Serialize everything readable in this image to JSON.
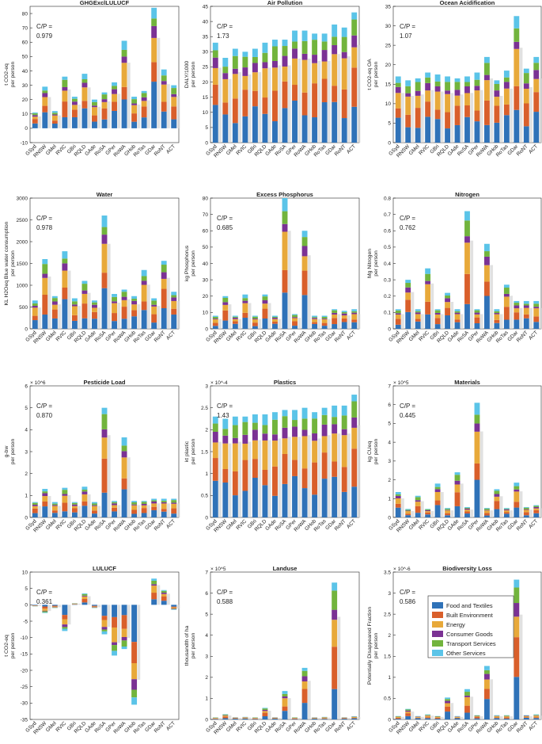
{
  "regions": [
    "GSyd",
    "RNSW",
    "GMel",
    "RVIC",
    "GBri",
    "RQLD",
    "GAde",
    "RoSA",
    "GPer",
    "RoWA",
    "GHob",
    "RoTas",
    "GDar",
    "RoNT",
    "ACT"
  ],
  "legend": {
    "entries": [
      {
        "name": "Food and Textiles",
        "color": "#2f72b8"
      },
      {
        "name": "Built Environment",
        "color": "#d95f2b"
      },
      {
        "name": "Energy",
        "color": "#e8a93a"
      },
      {
        "name": "Consumer Goods",
        "color": "#7b3294"
      },
      {
        "name": "Transport Services",
        "color": "#72b43d"
      },
      {
        "name": "Other Services",
        "color": "#5bc4e8"
      }
    ]
  },
  "chart_data": [
    {
      "type": "bar",
      "stacked": true,
      "title": "GHGExclLULUCF",
      "ylabel": "t CO2-eq\nper person",
      "ylim": [
        -10,
        85
      ],
      "yticks": [
        -10,
        0,
        10,
        20,
        30,
        40,
        50,
        60,
        70,
        80
      ],
      "exponent": "",
      "cp_label": "C/P =",
      "cp_value": "0.979",
      "cp_pos": "left",
      "legend": false,
      "totals": [
        11,
        29,
        12,
        36,
        22,
        38,
        20,
        25,
        32,
        61,
        22,
        26,
        84,
        41,
        30
      ]
    },
    {
      "type": "bar",
      "stacked": true,
      "title": "Air Pollution",
      "ylabel": "DALY/1000\nper person",
      "ylim": [
        0,
        45
      ],
      "yticks": [
        0,
        5,
        10,
        15,
        20,
        25,
        30,
        35,
        40,
        45
      ],
      "exponent": "",
      "cp_label": "C/P =",
      "cp_value": "1.73",
      "cp_pos": "left",
      "legend": false,
      "totals": [
        33,
        28,
        31,
        30,
        31,
        33,
        34,
        34,
        37,
        37,
        36,
        36,
        39,
        38,
        43
      ]
    },
    {
      "type": "bar",
      "stacked": true,
      "title": "Ocean Acidification",
      "ylabel": "t CO2-eq OA\nper person",
      "ylim": [
        0,
        35
      ],
      "yticks": [
        0,
        5,
        10,
        15,
        20,
        25,
        30,
        35
      ],
      "exponent": "",
      "cp_label": "C/P =",
      "cp_value": "1.07",
      "cp_pos": "left",
      "legend": false,
      "totals": [
        17,
        16,
        16.5,
        18,
        17.5,
        17,
        16.5,
        17,
        18,
        22,
        16,
        18.5,
        32.5,
        19,
        22
      ]
    },
    {
      "type": "bar",
      "stacked": true,
      "title": "Water",
      "ylabel": "KL H2Oeq Blue water consumption\nper person",
      "ylim": [
        0,
        3000
      ],
      "yticks": [
        0,
        500,
        1000,
        1500,
        2000,
        2500,
        3000
      ],
      "exponent": "",
      "cp_label": "C/P =",
      "cp_value": "0.978",
      "cp_pos": "left",
      "legend": false,
      "totals": [
        650,
        1600,
        750,
        1780,
        700,
        1100,
        650,
        2600,
        800,
        900,
        750,
        1350,
        700,
        1560,
        850
      ]
    },
    {
      "type": "bar",
      "stacked": true,
      "title": "Excess Phosphorus",
      "ylabel": "kg Phosphorus\nper person",
      "ylim": [
        0,
        80
      ],
      "yticks": [
        0,
        10,
        20,
        30,
        40,
        50,
        60,
        70,
        80
      ],
      "exponent": "",
      "cp_label": "C/P =",
      "cp_value": "0.685",
      "cp_pos": "left",
      "legend": false,
      "totals": [
        8,
        20,
        8,
        21,
        8,
        21,
        8,
        80,
        9,
        60,
        8,
        8,
        12,
        11,
        12
      ]
    },
    {
      "type": "bar",
      "stacked": true,
      "title": "Nitrogen",
      "ylabel": "Mg Nitrogen\nper person",
      "ylim": [
        0,
        0.8
      ],
      "yticks": [
        0,
        0.1,
        0.2,
        0.3,
        0.4,
        0.5,
        0.6,
        0.7,
        0.8
      ],
      "exponent": "",
      "cp_label": "C/P =",
      "cp_value": "0.762",
      "cp_pos": "left",
      "legend": false,
      "totals": [
        0.12,
        0.3,
        0.12,
        0.37,
        0.12,
        0.22,
        0.12,
        0.72,
        0.12,
        0.52,
        0.12,
        0.27,
        0.17,
        0.17,
        0.17
      ]
    },
    {
      "type": "bar",
      "stacked": true,
      "title": "Pesticide Load",
      "ylabel": "g-bw\nper person",
      "ylim": [
        0,
        6
      ],
      "yticks": [
        0,
        1,
        2,
        3,
        4,
        5,
        6
      ],
      "exponent": "× 10^6",
      "cp_label": "C/P =",
      "cp_value": "0.870",
      "cp_pos": "left",
      "legend": false,
      "totals": [
        0.7,
        1.3,
        0.7,
        1.35,
        0.7,
        1.4,
        0.7,
        5.0,
        0.75,
        3.65,
        0.75,
        0.75,
        0.85,
        0.85,
        0.85
      ]
    },
    {
      "type": "bar",
      "stacked": true,
      "title": "Plastics",
      "ylabel": "kt plastic\nper person",
      "ylim": [
        0,
        3
      ],
      "yticks": [
        0,
        0.5,
        1,
        1.5,
        2,
        2.5,
        3
      ],
      "exponent": "× 10^-4",
      "cp_label": "C/P =",
      "cp_value": "1.43",
      "cp_pos": "left",
      "legend": false,
      "totals": [
        2.3,
        2.25,
        2.3,
        2.3,
        2.35,
        2.35,
        2.4,
        2.45,
        2.45,
        2.5,
        2.4,
        2.5,
        2.55,
        2.55,
        2.8
      ]
    },
    {
      "type": "bar",
      "stacked": true,
      "title": "Materials",
      "ylabel": "kg CUeq\nper person",
      "ylim": [
        0,
        7
      ],
      "yticks": [
        0,
        1,
        2,
        3,
        4,
        5,
        6,
        7
      ],
      "exponent": "× 10^5",
      "cp_label": "C/P =",
      "cp_value": "0.445",
      "cp_pos": "left",
      "legend": false,
      "totals": [
        1.35,
        0.45,
        1.15,
        0.45,
        1.8,
        0.5,
        2.4,
        0.55,
        6.1,
        0.5,
        1.5,
        0.5,
        1.85,
        0.55,
        0.65
      ]
    },
    {
      "type": "bar",
      "stacked": true,
      "title": "LULUCF",
      "ylabel": "t CO2-eq\nper person",
      "ylim": [
        -35,
        10
      ],
      "yticks": [
        -35,
        -30,
        -25,
        -20,
        -15,
        -10,
        -5,
        0,
        5,
        10
      ],
      "exponent": "",
      "cp_label": "C/P =",
      "cp_value": "0.361",
      "cp_pos": "left",
      "legend": false,
      "totals": [
        -0.5,
        -2.5,
        -1,
        -8,
        0.5,
        3.5,
        -1,
        -9,
        -15.5,
        -13.5,
        -30.5,
        0,
        8,
        4.5,
        -1.5
      ]
    },
    {
      "type": "bar",
      "stacked": true,
      "title": "Landuse",
      "ylabel": "thousandth of ha\nper person",
      "ylim": [
        0,
        7
      ],
      "yticks": [
        0,
        1,
        2,
        3,
        4,
        5,
        6,
        7
      ],
      "exponent": "× 10^5",
      "cp_label": "C/P =",
      "cp_value": "0.588",
      "cp_pos": "left",
      "legend": false,
      "totals": [
        0.1,
        0.25,
        0.1,
        0.12,
        0.1,
        0.55,
        0.1,
        1.35,
        0.1,
        2.45,
        0.1,
        0.12,
        6.5,
        0.1,
        0.15
      ]
    },
    {
      "type": "bar",
      "stacked": true,
      "title": "Biodiversity Loss",
      "ylabel": "Potentially Disappeared Fraction\nper person",
      "ylim": [
        0,
        3.5
      ],
      "yticks": [
        0,
        0.5,
        1,
        1.5,
        2,
        2.5,
        3,
        3.5
      ],
      "exponent": "× 10^-6",
      "cp_label": "C/P =",
      "cp_value": "0.586",
      "cp_pos": "left",
      "legend": true,
      "totals": [
        0.08,
        0.25,
        0.08,
        0.12,
        0.08,
        0.52,
        0.08,
        0.72,
        0.1,
        1.27,
        0.1,
        0.1,
        3.32,
        0.1,
        0.12
      ]
    }
  ]
}
